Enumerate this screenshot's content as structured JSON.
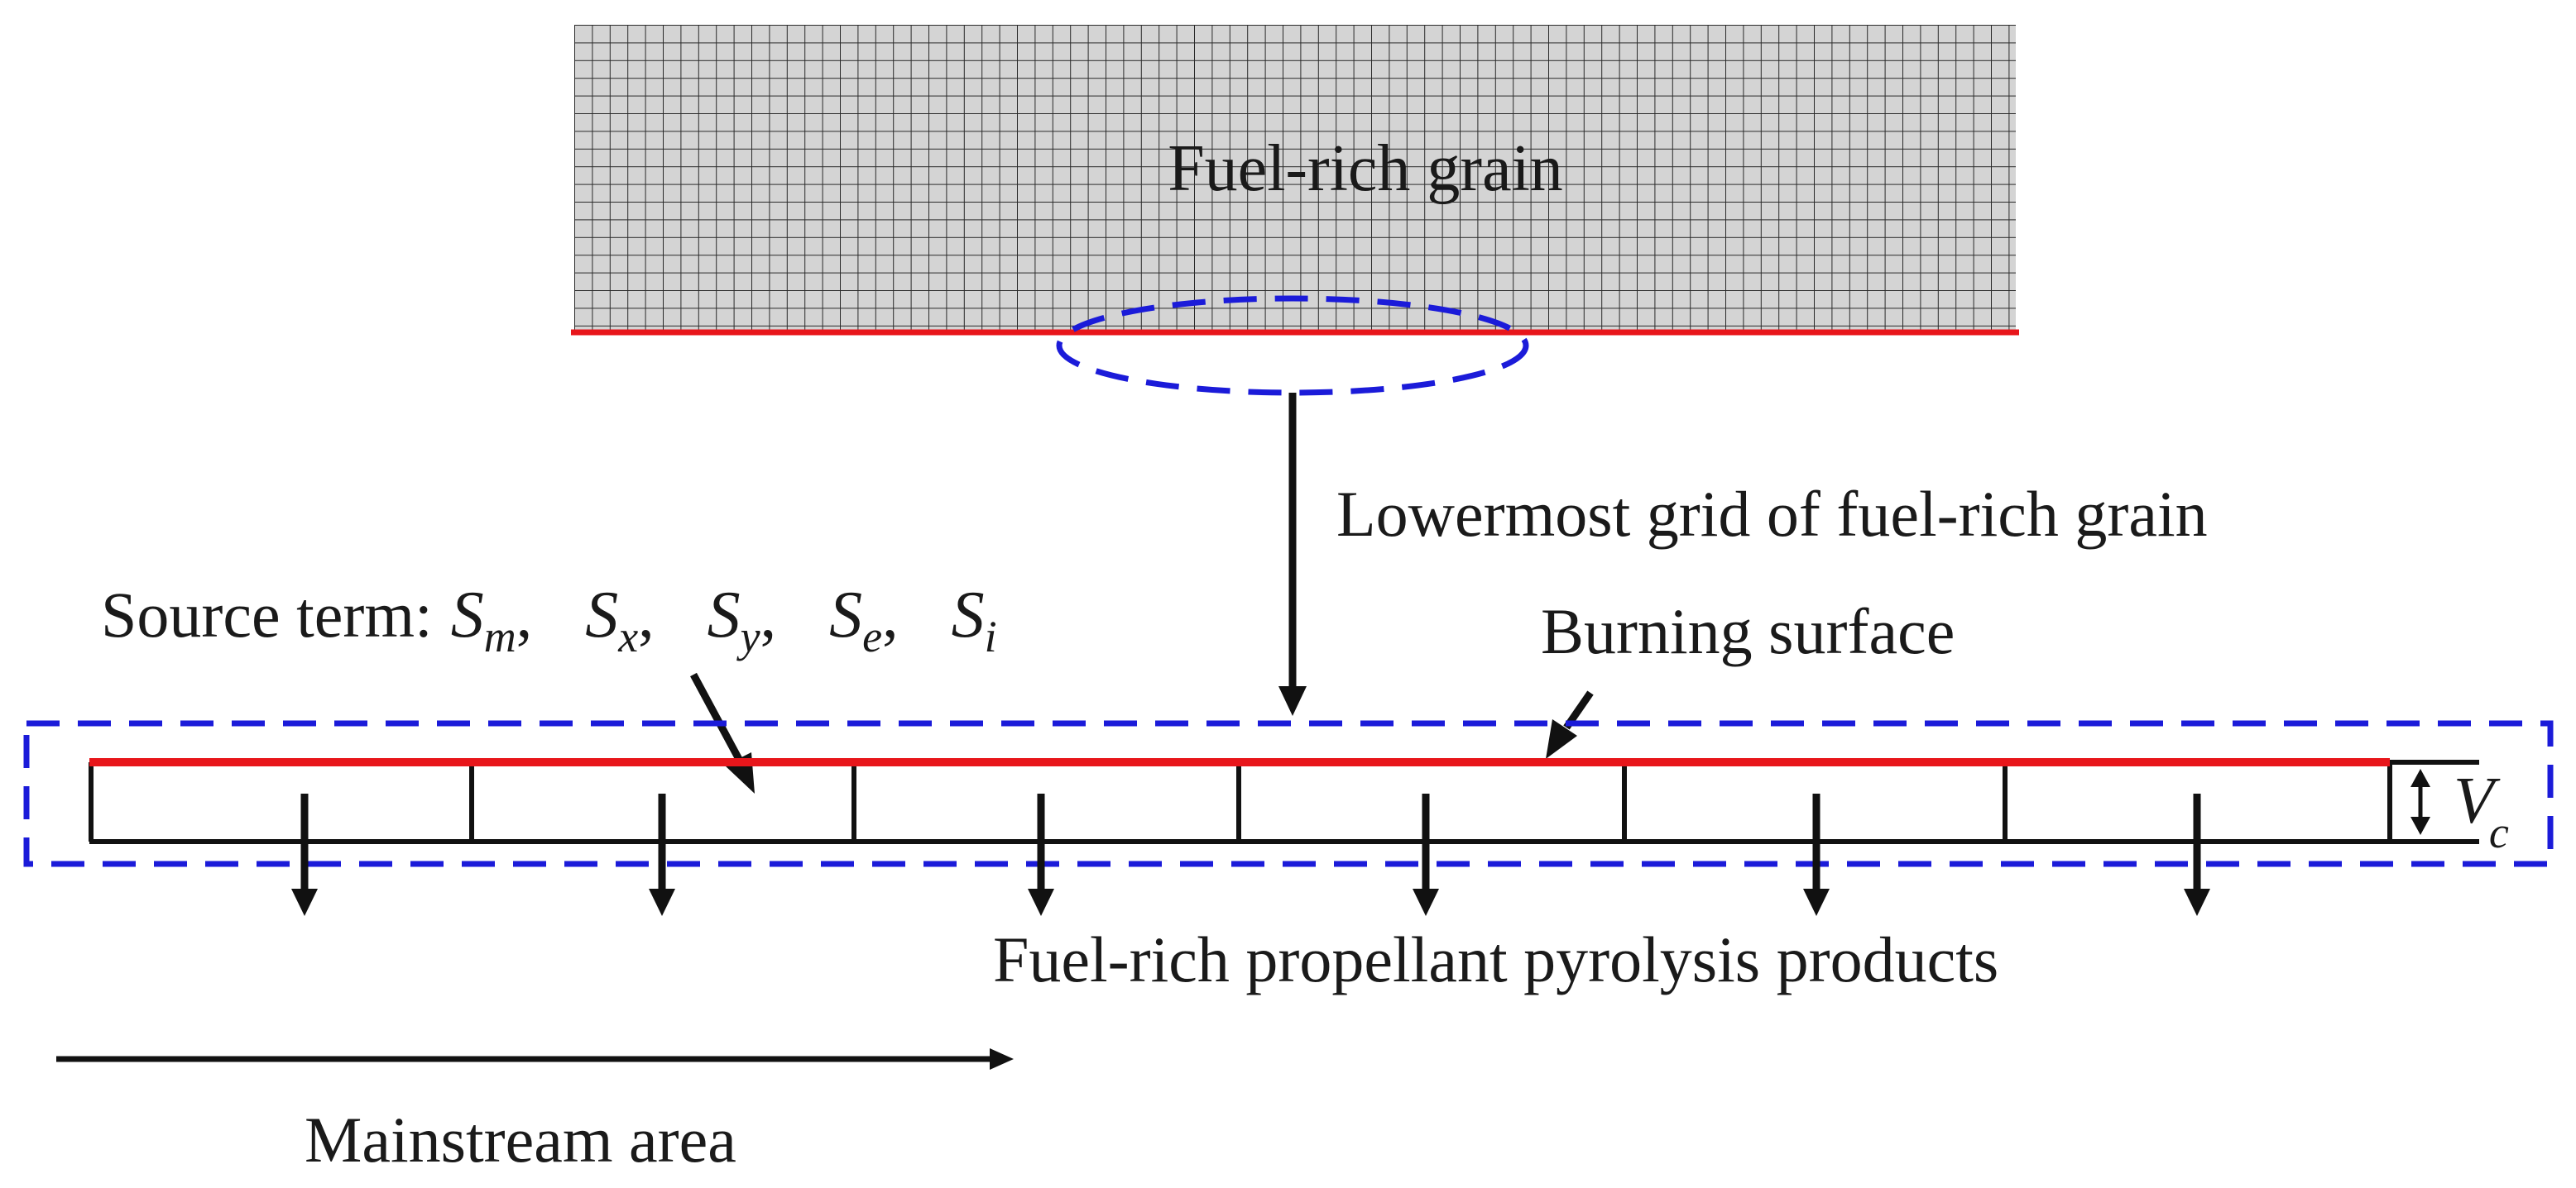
{
  "labels": {
    "grain": "Fuel-rich grain",
    "lowermost_grid": "Lowermost grid of fuel-rich grain",
    "burning_surface": "Burning surface",
    "pyrolysis_products": "Fuel-rich propellant pyrolysis products",
    "mainstream_area": "Mainstream area",
    "source_term_prefix": "Source term:"
  },
  "source_terms": [
    {
      "base": "S",
      "sub": "m"
    },
    {
      "base": "S",
      "sub": "x"
    },
    {
      "base": "S",
      "sub": "y"
    },
    {
      "base": "S",
      "sub": "e"
    },
    {
      "base": "S",
      "sub": "i"
    }
  ],
  "separator": ",",
  "cell_velocity": {
    "base": "V",
    "sub": "c"
  },
  "colors": {
    "burning_surface": "#e8161b",
    "selection_outline": "#1b1bd9",
    "grid_fill": "#d4d4d4",
    "grid_lines": "#2a2a2a",
    "arrows": "#111111"
  }
}
